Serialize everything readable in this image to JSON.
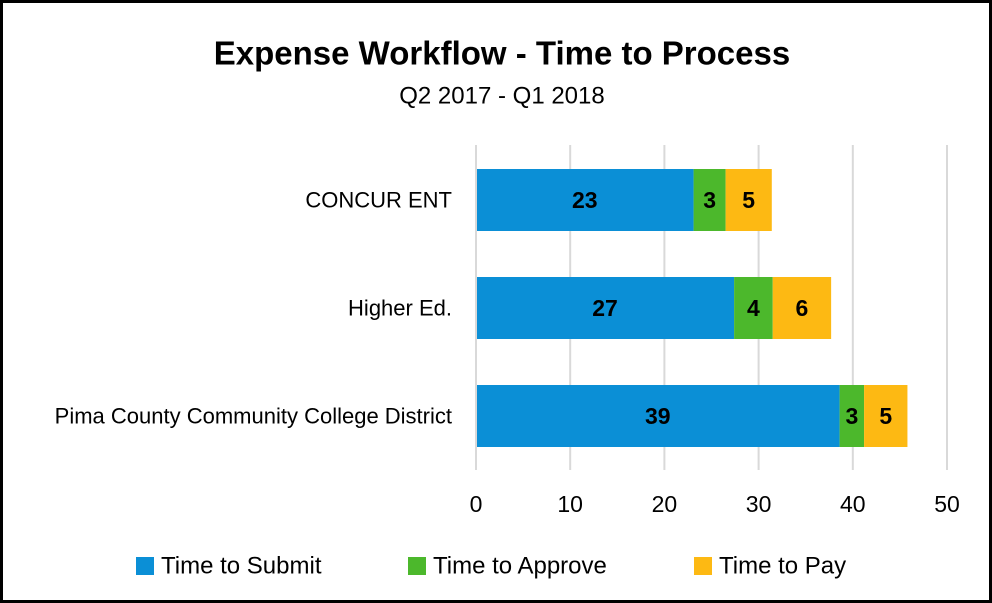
{
  "chart_data": {
    "type": "stacked_barh",
    "title": "Expense Workflow - Time to Process",
    "subtitle": "Q2 2017 - Q1 2018",
    "categories": [
      "CONCUR ENT",
      "Higher Ed.",
      "Pima County Community College District"
    ],
    "series": [
      {
        "name": "Time to Submit",
        "color": "#0b8fd6",
        "values": [
          23.1,
          27.4,
          38.6
        ],
        "value_labels": [
          "23",
          "27",
          "39"
        ]
      },
      {
        "name": "Time to Approve",
        "color": "#4cb82c",
        "values": [
          3.4,
          4.1,
          2.6
        ],
        "value_labels": [
          "3",
          "4",
          "3"
        ]
      },
      {
        "name": "Time to Pay",
        "color": "#fdb913",
        "values": [
          4.9,
          6.2,
          4.6
        ],
        "value_labels": [
          "5",
          "6",
          "5"
        ]
      }
    ],
    "xlim": [
      0,
      50
    ],
    "xticks": [
      0,
      10,
      20,
      30,
      40,
      50
    ],
    "grid": true,
    "legend": "bottom"
  }
}
